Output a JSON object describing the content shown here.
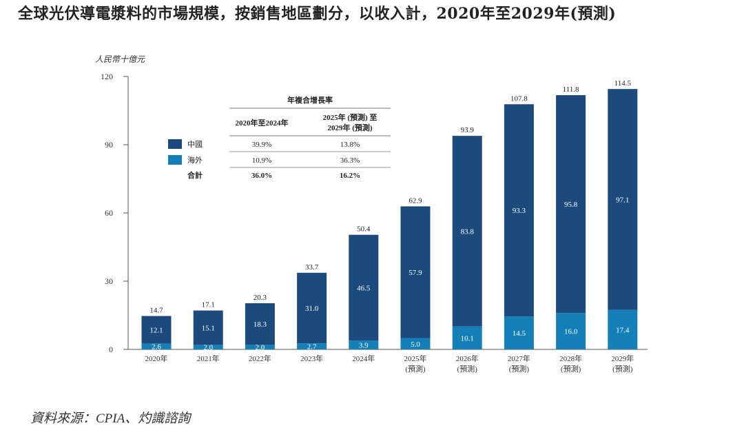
{
  "title": "全球光伏導電漿料的市場規模，按銷售地區劃分，以收入計，2020年至2029年(預測)",
  "source": "資料來源：CPIA、灼識諮詢",
  "colors": {
    "china": "#1d4a7c",
    "overseas": "#1580b8"
  },
  "cagr_table": {
    "title": "年複合增長率",
    "col1_header": "2020年至2024年",
    "col2_header_line1": "2025年 (預測) 至",
    "col2_header_line2": "2029年 (預測)",
    "rows": [
      {
        "label": "中國",
        "v1": "39.9%",
        "v2": "13.8%"
      },
      {
        "label": "海外",
        "v1": "10.9%",
        "v2": "36.3%"
      },
      {
        "label": "合計",
        "v1": "36.0%",
        "v2": "16.2%"
      }
    ]
  },
  "chart_data": {
    "type": "bar",
    "stacked": true,
    "ylabel": "人民幣十億元",
    "ylim": [
      0,
      120
    ],
    "yticks": [
      "0",
      "30",
      "60",
      "90",
      "120"
    ],
    "categories": [
      "2020年",
      "2021年",
      "2022年",
      "2023年",
      "2024年",
      "2025年",
      "2026年",
      "2027年",
      "2028年",
      "2029年"
    ],
    "forecast_flags": [
      false,
      false,
      false,
      false,
      false,
      true,
      true,
      true,
      true,
      true
    ],
    "forecast_label": "(預測)",
    "series": [
      {
        "name": "海外",
        "values": [
          2.6,
          2.0,
          2.0,
          2.7,
          3.9,
          5.0,
          10.1,
          14.5,
          16.0,
          17.4
        ],
        "labels": [
          "2.6",
          "2.0",
          "2.0",
          "2.7",
          "3.9",
          "5.0",
          "10.1",
          "14.5",
          "16.0",
          "17.4"
        ]
      },
      {
        "name": "中國",
        "values": [
          12.1,
          15.1,
          18.3,
          31.0,
          46.5,
          57.9,
          83.8,
          93.3,
          95.8,
          97.1
        ],
        "labels": [
          "12.1",
          "15.1",
          "18.3",
          "31.0",
          "46.5",
          "57.9",
          "83.8",
          "93.3",
          "95.8",
          "97.1"
        ]
      }
    ],
    "totals": [
      14.7,
      17.1,
      20.3,
      33.7,
      50.4,
      62.9,
      93.9,
      107.8,
      111.8,
      114.5
    ],
    "total_labels": [
      "14.7",
      "17.1",
      "20.3",
      "33.7",
      "50.4",
      "62.9",
      "93.9",
      "107.8",
      "111.8",
      "114.5"
    ]
  }
}
